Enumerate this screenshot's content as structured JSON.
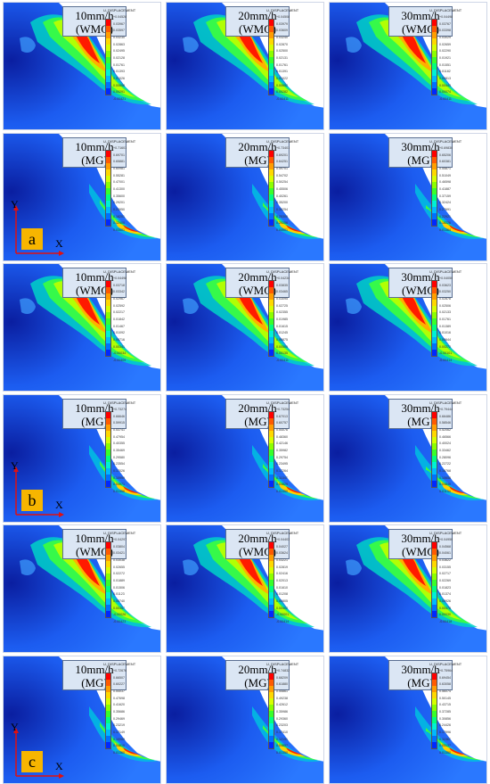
{
  "legend_title": "U, DISPLACEMENT",
  "legend_colors": [
    "#ff0000",
    "#ff5a00",
    "#ff9d00",
    "#ffd800",
    "#d8ff00",
    "#8cff00",
    "#38ff2a",
    "#00ff80",
    "#00f0d6",
    "#00b8ff",
    "#0070ff",
    "#0028ff",
    "#0000e0"
  ],
  "groups": [
    {
      "label": "a",
      "axis_y": "Y",
      "axis_x": "X",
      "rows": [
        {
          "panels": [
            {
              "tag_line1": "10mm/h",
              "tag_line2": "(WMG)",
              "values": [
                "+0.04528",
                "0.03967",
                "0.03597",
                "0.03230",
                "0.02863",
                "0.02495",
                "0.02128",
                "0.01761",
                "0.01393",
                "0.01026",
                "0.00658",
                "0.00291",
                "-0.00421"
              ]
            },
            {
              "tag_line1": "20mm/h",
              "tag_line2": "(WMG)",
              "values": [
                "+0.04508",
                "0.03979",
                "0.03609",
                "0.03240",
                "0.02870",
                "0.02500",
                "0.02131",
                "0.01761",
                "0.01391",
                "0.01022",
                "0.00652",
                "0.00282",
                "-0.00411"
              ]
            },
            {
              "tag_line1": "30mm/h",
              "tag_line2": "(WMG)",
              "values": [
                "+0.04498",
                "0.03767",
                "0.03398",
                "0.03029",
                "0.02659",
                "0.02290",
                "0.01921",
                "0.01551",
                "0.01182",
                "0.00813",
                "0.00443",
                "0.00074",
                "-0.00411"
              ]
            }
          ]
        },
        {
          "panels": [
            {
              "tag_line1": "10mm/h",
              "tag_line2": "(MG)",
              "values": [
                "+0.71601",
                "0.69701",
                "0.65881",
                "0.60981",
                "0.55281",
                "0.47001",
                "0.41300",
                "0.35600",
                "0.29201",
                "0.23950",
                "0.18201",
                "0.12400",
                "0.03501"
              ]
            },
            {
              "tag_line1": "20mm/h",
              "tag_line2": "(MG)",
              "values": [
                "+0.73401",
                "0.69201",
                "0.64251",
                "0.59701",
                "0.54702",
                "0.50254",
                "0.45506",
                "0.40261",
                "0.35200",
                "0.30254",
                "0.25300",
                "0.20256",
                "0.04901"
              ]
            },
            {
              "tag_line1": "30mm/h",
              "tag_line2": "(MG)",
              "values": [
                "+0.69830",
                "0.65206",
                "0.60381",
                "0.55871",
                "0.51049",
                "0.46598",
                "0.41887",
                "0.37159",
                "0.32424",
                "0.27691",
                "0.22921",
                "0.18226",
                "0.01364"
              ]
            }
          ]
        }
      ]
    },
    {
      "label": "b",
      "axis_y": "Y",
      "axis_x": "X",
      "rows": [
        {
          "panels": [
            {
              "tag_line1": "10mm/h",
              "tag_line2": "(WMG)",
              "values": [
                "+0.04498",
                "0.03718",
                "0.03342",
                "0.02967",
                "0.02592",
                "0.02217",
                "0.01842",
                "0.01467",
                "0.01092",
                "0.00716",
                "0.00341",
                "-0.00034",
                "-0.00409"
              ]
            },
            {
              "tag_line1": "20mm/h",
              "tag_line2": "(WMG)",
              "values": [
                "+0.04234",
                "0.03835",
                "0.03465",
                "0.03095",
                "0.02725",
                "0.02355",
                "0.01985",
                "0.01615",
                "0.01245",
                "0.00875",
                "0.00505",
                "0.00135",
                "-0.00411"
              ]
            },
            {
              "tag_line1": "30mm/h",
              "tag_line2": "(WMG)",
              "values": [
                "+0.04050",
                "0.03623",
                "0.03250",
                "0.02878",
                "0.02506",
                "0.02133",
                "0.01761",
                "0.01389",
                "0.01016",
                "0.00644",
                "0.00272",
                "-0.00101",
                "-0.00414"
              ]
            }
          ]
        },
        {
          "panels": [
            {
              "tag_line1": "10mm/h",
              "tag_line2": "(MG)",
              "values": [
                "+0.73274",
                "0.66646",
                "0.59915",
                "0.53741",
                "0.47954",
                "0.40355",
                "0.35469",
                "0.29580",
                "0.23554",
                "0.17026",
                "0.10999",
                "0.04971",
                "0.01356"
              ]
            },
            {
              "tag_line1": "20mm/h",
              "tag_line2": "(MG)",
              "values": [
                "+0.73254",
                "0.67013",
                "0.60757",
                "0.54076",
                "0.48360",
                "0.42146",
                "0.35982",
                "0.29754",
                "0.23495",
                "0.17264",
                "0.11047",
                "0.04829",
                "0.01350"
              ]
            },
            {
              "tag_line1": "30mm/h",
              "tag_line2": "(MG)",
              "values": [
                "+0.79444",
                "0.66486",
                "0.58546",
                "0.52062",
                "0.46566",
                "0.40024",
                "0.33462",
                "0.28096",
                "0.22722",
                "0.16768",
                "0.10658",
                "0.04840",
                "0.01134"
              ]
            }
          ]
        }
      ]
    },
    {
      "label": "c",
      "axis_y": "Y",
      "axis_x": "X",
      "rows": [
        {
          "panels": [
            {
              "tag_line1": "10mm/h",
              "tag_line2": "(WMG)",
              "values": [
                "+0.04297",
                "0.03804",
                "0.03421",
                "0.03038",
                "0.02655",
                "0.02272",
                "0.01889",
                "0.01506",
                "0.01123",
                "0.00740",
                "0.00357",
                "-0.00026",
                "-0.00423"
              ]
            },
            {
              "tag_line1": "20mm/h",
              "tag_line2": "(WMG)",
              "values": [
                "+0.04403",
                "0.04027",
                "0.03624",
                "0.03221",
                "0.02819",
                "0.02416",
                "0.02013",
                "0.01610",
                "0.01208",
                "0.00805",
                "0.00402",
                "-0.00001",
                "-0.00414"
              ]
            },
            {
              "tag_line1": "30mm/h",
              "tag_line2": "(WMG)",
              "values": [
                "+0.04950",
                "0.04568",
                "0.04061",
                "0.03622",
                "0.03155",
                "0.02717",
                "0.02269",
                "0.01823",
                "0.01374",
                "0.00926",
                "0.00478",
                "0.00030",
                "-0.00418"
              ]
            }
          ]
        },
        {
          "panels": [
            {
              "tag_line1": "10mm/h",
              "tag_line2": "(MG)",
              "values": [
                "+0.72676",
                "0.66507",
                "0.60227",
                "0.54037",
                "0.47698",
                "0.41620",
                "0.35686",
                "0.29469",
                "0.23219",
                "0.17149",
                "0.10980",
                "0.04810",
                "0.01360"
              ]
            },
            {
              "tag_line1": "20mm/h",
              "tag_line2": "(MG)",
              "values": [
                "+0.74832",
                "0.68209",
                "0.61880",
                "0.55861",
                "0.49238",
                "0.42612",
                "0.35986",
                "0.29360",
                "0.23203",
                "0.17410",
                "0.12191",
                "0.04857",
                "0.01350"
              ]
            },
            {
              "tag_line1": "30mm/h",
              "tag_line2": "(MG)",
              "values": [
                "+0.75964",
                "0.69454",
                "0.63058",
                "0.56074",
                "0.50145",
                "0.43715",
                "0.37285",
                "0.30856",
                "0.24426",
                "0.17996",
                "0.11567",
                "0.05137",
                "0.01350"
              ]
            }
          ]
        }
      ]
    }
  ]
}
